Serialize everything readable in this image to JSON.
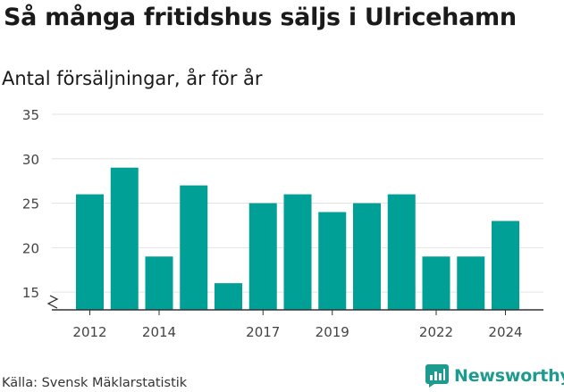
{
  "title": "Så många fritidshus säljs i Ulricehamn",
  "subtitle": "Antal försäljningar, år för år",
  "source": "Källa: Svensk Mäklarstatistik",
  "brand": {
    "name": "Newsworthy",
    "icon": "newsworthy-logo-icon"
  },
  "colors": {
    "bar": "#00a096",
    "grid": "#e3e3e3",
    "axis": "#333333",
    "brand": "#1e9b8f"
  },
  "chart_data": {
    "type": "bar",
    "categories": [
      "2012",
      "2013",
      "2014",
      "2015",
      "2016",
      "2017",
      "2018",
      "2019",
      "2020",
      "2021",
      "2022",
      "2023",
      "2024"
    ],
    "values": [
      26,
      29,
      19,
      27,
      16,
      25,
      26,
      24,
      25,
      26,
      19,
      19,
      23
    ],
    "xtick_labels": [
      "2012",
      "",
      "2014",
      "",
      "",
      "2017",
      "",
      "2019",
      "",
      "",
      "2022",
      "",
      "2024"
    ],
    "yticks": [
      15,
      20,
      25,
      30,
      35
    ],
    "ylim": [
      13,
      35
    ],
    "axis_break": true,
    "grid": true,
    "xlabel": "",
    "ylabel": ""
  }
}
